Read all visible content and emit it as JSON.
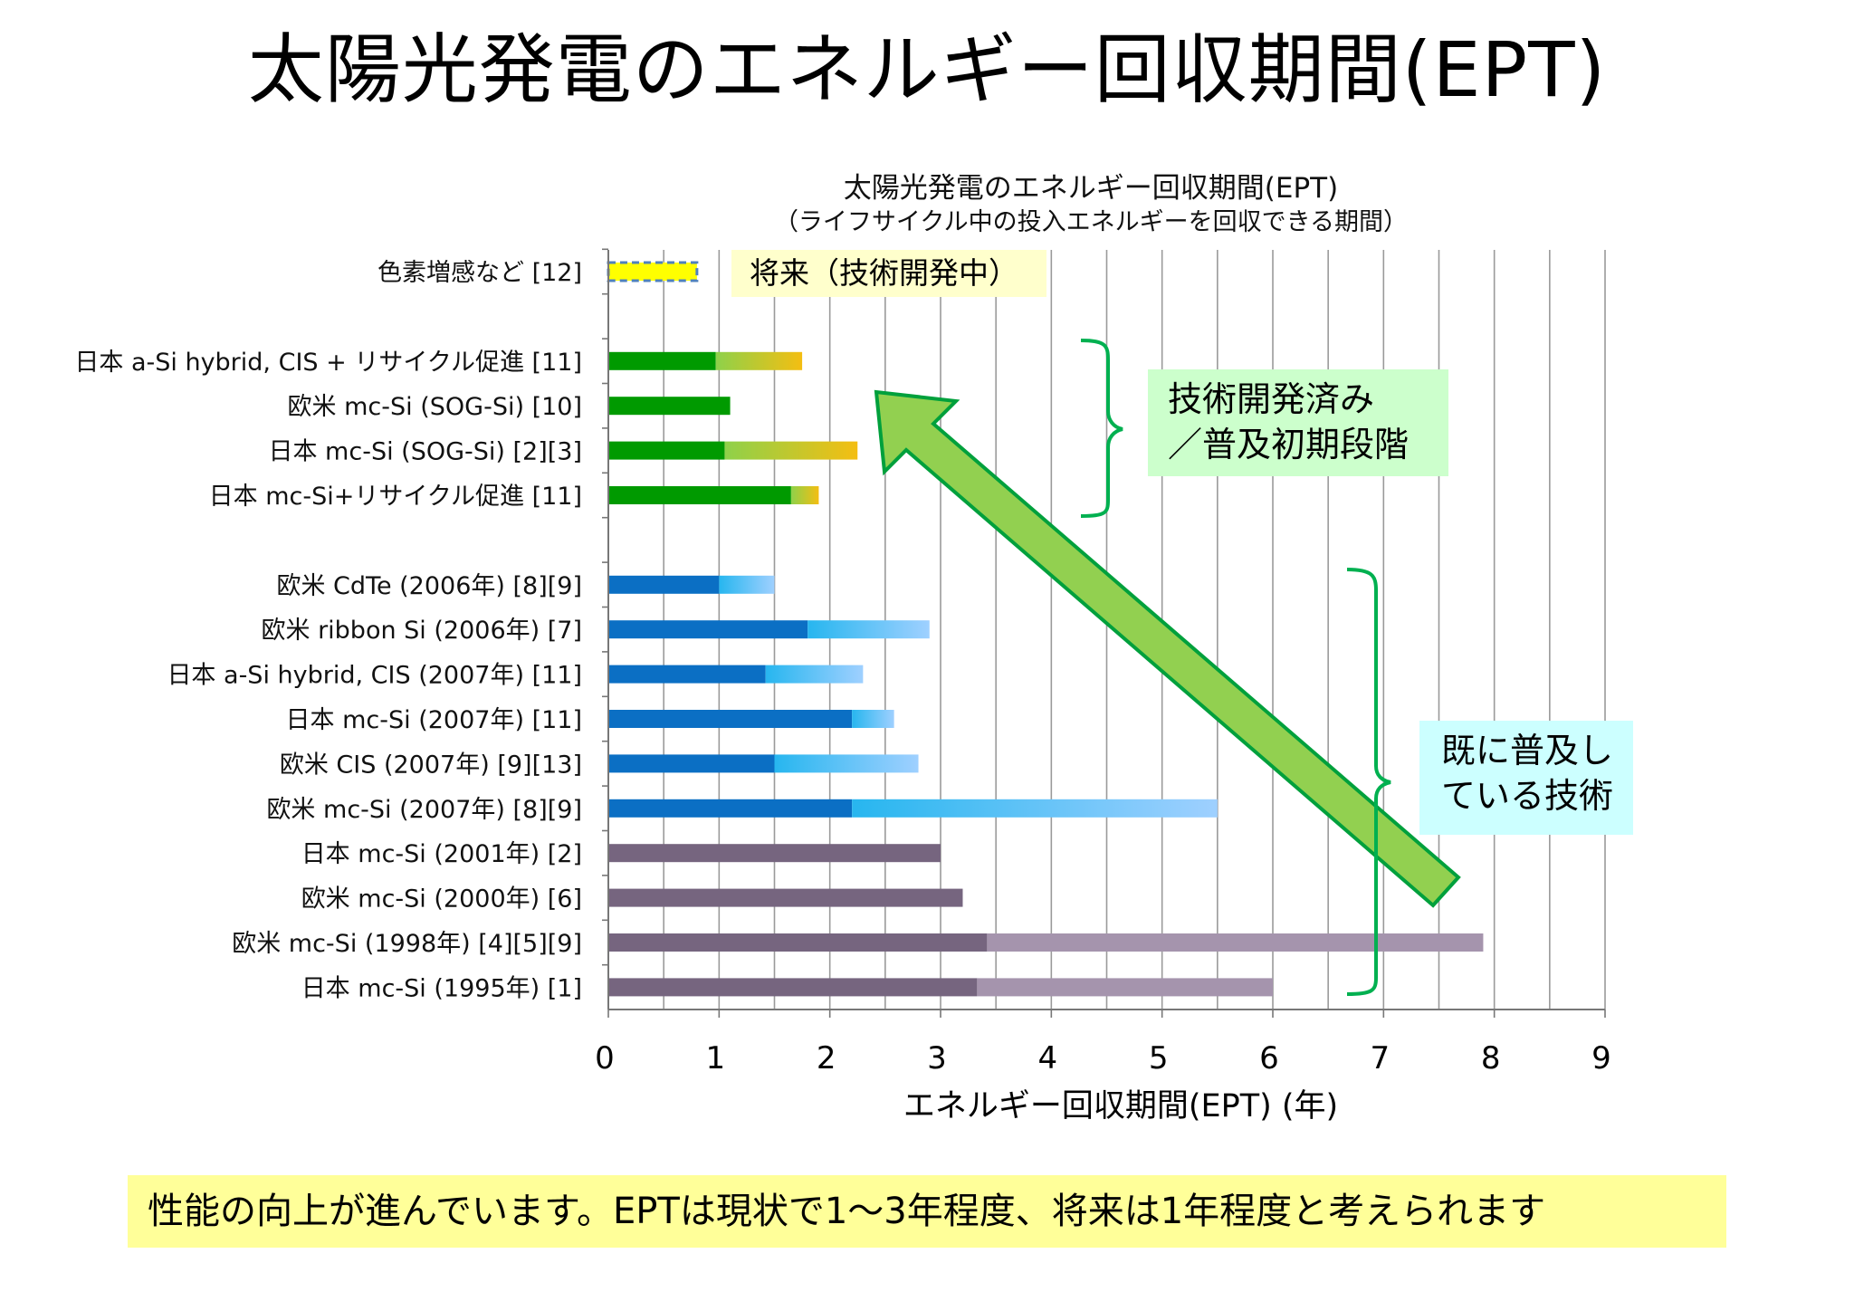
{
  "slide": {
    "title": "太陽光発電のエネルギー回収期間(EPT)",
    "bottom_note": "性能の向上が進んでいます。EPTは現状で1～3年程度、将来は1年程度と考えられます"
  },
  "annotations": {
    "future": "将来（技術開発中）",
    "developed_line1": "技術開発済み",
    "developed_line2": "／普及初期段階",
    "spread_line1": "既に普及し",
    "spread_line2": "ている技術"
  },
  "colors": {
    "green_base": "#009a00",
    "green_ext_from": "#8ed14a",
    "green_ext_to": "#f4be12",
    "blue_base": "#0b6fc4",
    "blue_ext_from": "#27b6ef",
    "blue_ext_to": "#9fd0ff",
    "purple_base": "#76657f",
    "purple_ext": "#a594ad",
    "dye_fill": "#ffff00",
    "dye_border": "#4f81bd",
    "arrow_fill": "#92d050",
    "arrow_stroke": "#00a03c",
    "brace": "#00b050",
    "grid": "#9a9a9a"
  },
  "chart_data": {
    "type": "bar",
    "orientation": "horizontal",
    "stacked": true,
    "title": "太陽光発電のエネルギー回収期間(EPT)",
    "subtitle": "（ライフサイクル中の投入エネルギーを回収できる期間）",
    "xlabel": "エネルギー回収期間(EPT)  (年)",
    "xlim": [
      0,
      9
    ],
    "xticks": [
      "0",
      "1",
      "2",
      "3",
      "4",
      "5",
      "6",
      "7",
      "8",
      "9"
    ],
    "grid": "vertical lines every 0.5",
    "categories": [
      "色素増感など [12]",
      "",
      "日本 a-Si hybrid, CIS + リサイクル促進 [11]",
      "欧米 mc-Si (SOG-Si) [10]",
      "日本 mc-Si (SOG-Si) [2][3]",
      "日本 mc-Si+リサイクル促進 [11]",
      "",
      "欧米 CdTe (2006年) [8][9]",
      "欧米 ribbon Si (2006年) [7]",
      "日本 a-Si hybrid, CIS (2007年) [11]",
      "日本 mc-Si (2007年) [11]",
      "欧米 CIS (2007年) [9][13]",
      "欧米 mc-Si (2007年) [8][9]",
      "日本 mc-Si (2001年) [2]",
      "欧米 mc-Si (2000年) [6]",
      "欧米 mc-Si (1998年) [4][5][9]",
      "日本 mc-Si (1995年) [1]"
    ],
    "bars": [
      {
        "start": 0,
        "base": 0.8,
        "total": 0.8,
        "group": "dye"
      },
      null,
      {
        "start": 0,
        "base": 0.97,
        "total": 1.75,
        "group": "green"
      },
      {
        "start": 0,
        "base": 1.1,
        "total": 1.1,
        "group": "green"
      },
      {
        "start": 0,
        "base": 1.05,
        "total": 2.25,
        "group": "green"
      },
      {
        "start": 0,
        "base": 1.65,
        "total": 1.9,
        "group": "green"
      },
      null,
      {
        "start": 0,
        "base": 1.0,
        "total": 1.5,
        "group": "blue"
      },
      {
        "start": 0,
        "base": 1.8,
        "total": 2.9,
        "group": "blue"
      },
      {
        "start": 0,
        "base": 1.42,
        "total": 2.3,
        "group": "blue"
      },
      {
        "start": 0,
        "base": 2.2,
        "total": 2.58,
        "group": "blue"
      },
      {
        "start": 0,
        "base": 1.5,
        "total": 2.8,
        "group": "blue"
      },
      {
        "start": 0,
        "base": 2.2,
        "total": 5.5,
        "group": "blue"
      },
      {
        "start": 0,
        "base": 3.0,
        "total": 3.0,
        "group": "purple"
      },
      {
        "start": 0,
        "base": 3.2,
        "total": 3.2,
        "group": "purple"
      },
      {
        "start": 0,
        "base": 3.42,
        "total": 7.9,
        "group": "purple"
      },
      {
        "start": 0,
        "base": 3.33,
        "total": 6.0,
        "group": "purple"
      }
    ]
  }
}
